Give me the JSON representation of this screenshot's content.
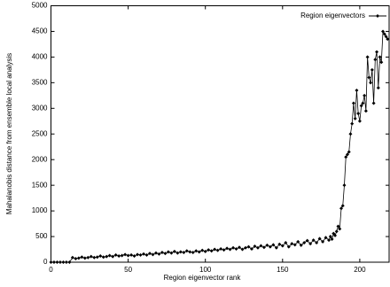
{
  "chart_data": {
    "type": "line",
    "xlabel": "Region eigenvector rank",
    "ylabel": "Mahalanobis distance from ensemble local analysis",
    "x": [
      0,
      2,
      4,
      6,
      8,
      10,
      12,
      14,
      16,
      18,
      20,
      22,
      24,
      26,
      28,
      30,
      32,
      34,
      36,
      38,
      40,
      42,
      44,
      46,
      48,
      50,
      52,
      54,
      56,
      58,
      60,
      62,
      64,
      66,
      68,
      70,
      72,
      74,
      76,
      78,
      80,
      82,
      84,
      86,
      88,
      90,
      92,
      94,
      96,
      98,
      100,
      102,
      104,
      106,
      108,
      110,
      112,
      114,
      116,
      118,
      120,
      122,
      124,
      126,
      128,
      130,
      132,
      134,
      136,
      138,
      140,
      142,
      144,
      146,
      148,
      150,
      152,
      154,
      156,
      158,
      160,
      162,
      164,
      166,
      168,
      170,
      172,
      174,
      176,
      178,
      180,
      181,
      182,
      183,
      184,
      185,
      186,
      187,
      188,
      189,
      190,
      191,
      192,
      193,
      194,
      195,
      196,
      197,
      198,
      199,
      200,
      201,
      202,
      203,
      204,
      205,
      206,
      207,
      208,
      209,
      210,
      211,
      212,
      213,
      214,
      215,
      216,
      217,
      218
    ],
    "series": [
      {
        "name": "Region eigenvectors",
        "color": "#000000",
        "values": [
          0,
          0,
          0,
          0,
          0,
          0,
          0,
          90,
          70,
          80,
          100,
          80,
          90,
          110,
          90,
          100,
          120,
          100,
          110,
          130,
          110,
          140,
          120,
          130,
          150,
          130,
          140,
          120,
          150,
          140,
          160,
          140,
          170,
          150,
          180,
          160,
          190,
          170,
          200,
          180,
          210,
          180,
          200,
          190,
          220,
          200,
          190,
          220,
          200,
          230,
          210,
          240,
          220,
          250,
          230,
          260,
          240,
          270,
          250,
          280,
          260,
          290,
          250,
          280,
          300,
          260,
          310,
          280,
          320,
          290,
          330,
          300,
          340,
          280,
          350,
          320,
          380,
          300,
          360,
          340,
          400,
          330,
          380,
          420,
          360,
          430,
          380,
          460,
          400,
          480,
          430,
          500,
          450,
          560,
          520,
          600,
          700,
          650,
          1050,
          1100,
          1500,
          2050,
          2100,
          2150,
          2500,
          2700,
          3100,
          2800,
          3350,
          2900,
          2750,
          3050,
          3100,
          3250,
          2950,
          4000,
          3600,
          3500,
          3750,
          3100,
          3950,
          4100,
          3400,
          4000,
          3900,
          4500,
          4450,
          4400,
          4350
        ]
      }
    ],
    "xlim": [
      0,
      219
    ],
    "ylim": [
      0,
      5000
    ],
    "xticks": [
      0,
      50,
      100,
      150,
      200
    ],
    "yticks": [
      0,
      500,
      1000,
      1500,
      2000,
      2500,
      3000,
      3500,
      4000,
      4500,
      5000
    ],
    "legend": "upper right"
  }
}
